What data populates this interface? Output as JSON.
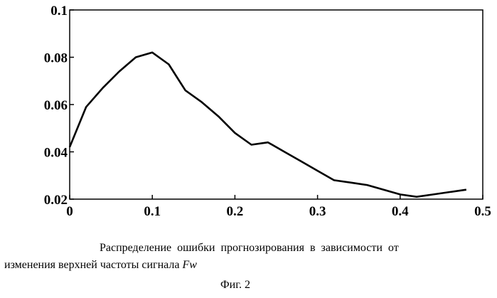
{
  "chart_data": {
    "type": "line",
    "x": [
      0,
      0.02,
      0.04,
      0.06,
      0.08,
      0.1,
      0.12,
      0.14,
      0.16,
      0.18,
      0.2,
      0.22,
      0.24,
      0.26,
      0.28,
      0.3,
      0.32,
      0.34,
      0.36,
      0.38,
      0.4,
      0.42,
      0.44,
      0.46,
      0.48
    ],
    "y": [
      0.042,
      0.059,
      0.067,
      0.074,
      0.08,
      0.082,
      0.077,
      0.066,
      0.061,
      0.055,
      0.048,
      0.043,
      0.044,
      0.04,
      0.036,
      0.032,
      0.028,
      0.027,
      0.026,
      0.024,
      0.022,
      0.021,
      0.022,
      0.023,
      0.024
    ],
    "xlim": [
      0,
      0.5
    ],
    "ylim": [
      0.02,
      0.1
    ],
    "xticks": [
      {
        "v": 0,
        "label": "0"
      },
      {
        "v": 0.1,
        "label": "0.1"
      },
      {
        "v": 0.2,
        "label": "0.2"
      },
      {
        "v": 0.3,
        "label": "0.3"
      },
      {
        "v": 0.4,
        "label": "0.4"
      },
      {
        "v": 0.5,
        "label": "0.5"
      }
    ],
    "yticks": [
      {
        "v": 0.02,
        "label": "0.02"
      },
      {
        "v": 0.04,
        "label": "0.04"
      },
      {
        "v": 0.06,
        "label": "0.06"
      },
      {
        "v": 0.08,
        "label": "0.08"
      },
      {
        "v": 0.1,
        "label": "0.1"
      }
    ],
    "grid": false,
    "color": "#000000"
  },
  "caption": {
    "line1": "Распределение ошибки прогнозирования в зависимости от",
    "line2_text": "изменения верхней частоты сигнала ",
    "line2_symbol": "Fw",
    "figure": "Фиг. 2"
  }
}
